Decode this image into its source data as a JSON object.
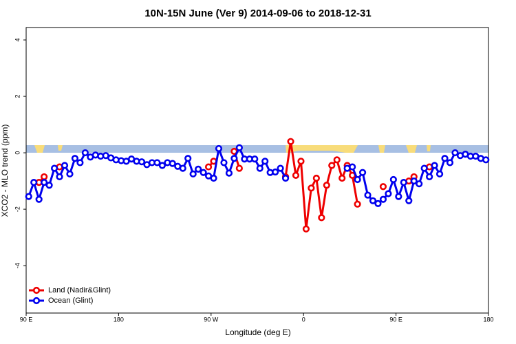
{
  "chart_data": {
    "type": "line",
    "title": "10N-15N June (Ver 9)   2014-09-06 to 2018-12-31",
    "x_label": "Longitude (deg E)",
    "y_label": "XCO2 - MLO trend (ppm)",
    "xlim": [
      90,
      540
    ],
    "xticks": [
      {
        "value": 90,
        "label": "90 E"
      },
      180,
      {
        "value": 270,
        "label": "90 W"
      },
      {
        "value": 360,
        "label": "0"
      },
      {
        "value": 450,
        "label": "90 E"
      },
      {
        "value": 540,
        "label": "180"
      }
    ],
    "ylim": [
      -5.68,
      4.44
    ],
    "yticks": [
      -4,
      -2,
      0,
      2,
      4
    ],
    "legend": "bottom-left",
    "series": [
      {
        "name": "Land (Nadir&Glint)",
        "color": "#ee0000",
        "x": [
          102.5,
          107.5,
          112.5,
          122.5,
          127.5,
          267.5,
          272.5,
          277.5,
          292.5,
          297.5,
          302.5,
          342.5,
          347.5,
          352.5,
          357.5,
          362.5,
          367.5,
          372.5,
          377.5,
          382.5,
          387.5,
          392.5,
          397.5,
          402.5,
          407.5,
          412.5,
          417.5,
          437.5,
          442.5,
          462.5,
          467.5,
          472.5,
          482.5
        ],
        "values": [
          -1.05,
          -0.85,
          null,
          -0.5,
          null,
          -0.5,
          -0.3,
          null,
          0.05,
          -0.55,
          null,
          -0.85,
          0.4,
          -0.8,
          -0.3,
          -2.7,
          -1.25,
          -0.9,
          -2.3,
          -1.15,
          -0.45,
          -0.25,
          -0.9,
          -0.45,
          -0.8,
          -1.82,
          null,
          -1.2,
          null,
          -1.0,
          -0.85,
          null,
          -0.5
        ]
      },
      {
        "name": "Ocean (Glint)",
        "color": "#0000ee",
        "x": [
          92.5,
          97.5,
          102.5,
          107.5,
          112.5,
          117.5,
          122.5,
          127.5,
          132.5,
          137.5,
          142.5,
          147.5,
          152.5,
          157.5,
          162.5,
          167.5,
          172.5,
          177.5,
          182.5,
          187.5,
          192.5,
          197.5,
          202.5,
          207.5,
          212.5,
          217.5,
          222.5,
          227.5,
          232.5,
          237.5,
          242.5,
          247.5,
          252.5,
          257.5,
          262.5,
          267.5,
          272.5,
          277.5,
          282.5,
          287.5,
          292.5,
          297.5,
          302.5,
          307.5,
          312.5,
          317.5,
          322.5,
          327.5,
          332.5,
          337.5,
          342.5,
          347.5,
          402.5,
          407.5,
          412.5,
          417.5,
          422.5,
          427.5,
          432.5,
          437.5,
          442.5,
          447.5,
          452.5,
          457.5,
          462.5,
          467.5,
          472.5,
          477.5,
          482.5,
          487.5,
          492.5,
          497.5,
          502.5,
          507.5,
          512.5,
          517.5,
          522.5,
          527.5,
          532.5,
          537.5
        ],
        "values": [
          -1.55,
          -1.05,
          -1.65,
          -1.05,
          -1.15,
          -0.55,
          -0.85,
          -0.45,
          -0.75,
          -0.2,
          -0.35,
          0.0,
          -0.15,
          -0.08,
          -0.12,
          -0.1,
          -0.18,
          -0.25,
          -0.28,
          -0.3,
          -0.22,
          -0.3,
          -0.32,
          -0.42,
          -0.35,
          -0.35,
          -0.45,
          -0.35,
          -0.38,
          -0.48,
          -0.55,
          -0.2,
          -0.75,
          -0.58,
          -0.7,
          -0.82,
          -0.9,
          0.15,
          -0.35,
          -0.72,
          -0.2,
          0.18,
          -0.22,
          -0.22,
          -0.22,
          -0.55,
          -0.3,
          -0.7,
          -0.68,
          -0.55,
          -0.9,
          null,
          -0.55,
          -0.5,
          -0.95,
          -0.7,
          -1.5,
          -1.7,
          -1.8,
          -1.65,
          -1.45,
          -0.95,
          -1.55,
          -1.05,
          -1.7,
          -1.0,
          -1.1,
          -0.55,
          -0.85,
          -0.45,
          -0.75,
          -0.2,
          -0.35,
          0.0,
          -0.1,
          -0.05,
          -0.12,
          -0.12,
          -0.2,
          -0.25
        ]
      }
    ]
  }
}
